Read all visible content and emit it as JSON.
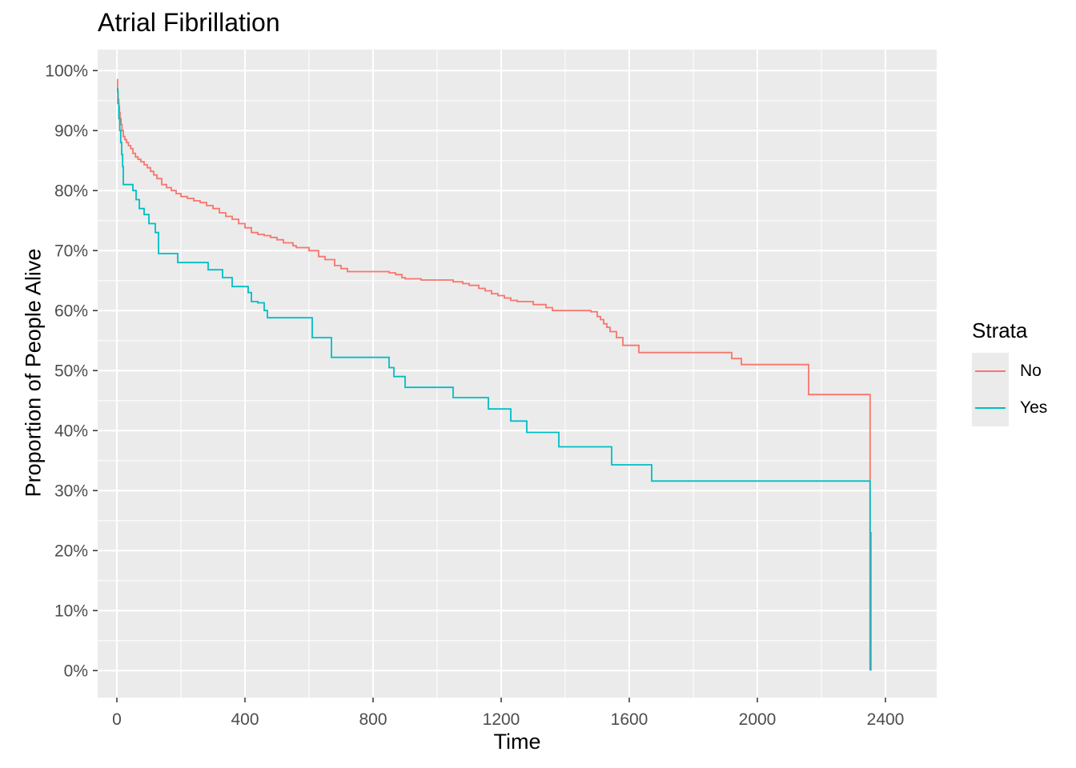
{
  "chart_data": {
    "type": "line",
    "step": true,
    "title": "Atrial Fibrillation",
    "xlabel": "Time",
    "ylabel": "Proportion of People Alive",
    "xlim": [
      -60,
      2560
    ],
    "ylim": [
      -0.045,
      1.035
    ],
    "x_ticks": [
      0,
      400,
      800,
      1200,
      1600,
      2000,
      2400
    ],
    "x_tick_labels": [
      "0",
      "400",
      "800",
      "1200",
      "1600",
      "2000",
      "2400"
    ],
    "y_ticks": [
      0,
      0.1,
      0.2,
      0.3,
      0.4,
      0.5,
      0.6,
      0.7,
      0.8,
      0.9,
      1.0
    ],
    "y_tick_labels": [
      "0%",
      "10%",
      "20%",
      "30%",
      "40%",
      "50%",
      "60%",
      "70%",
      "80%",
      "90%",
      "100%"
    ],
    "grid": true,
    "legend": {
      "title": "Strata",
      "position": "right"
    },
    "series": [
      {
        "name": "No",
        "color": "#F8766D",
        "x": [
          0,
          2,
          4,
          6,
          8,
          10,
          13,
          16,
          20,
          25,
          30,
          36,
          43,
          50,
          58,
          66,
          75,
          85,
          95,
          105,
          115,
          125,
          140,
          155,
          170,
          185,
          200,
          220,
          240,
          260,
          280,
          300,
          320,
          340,
          360,
          380,
          400,
          420,
          440,
          460,
          480,
          500,
          520,
          550,
          560,
          600,
          630,
          650,
          680,
          700,
          720,
          760,
          800,
          850,
          870,
          890,
          900,
          950,
          1000,
          1050,
          1080,
          1100,
          1130,
          1150,
          1170,
          1190,
          1210,
          1230,
          1250,
          1300,
          1340,
          1360,
          1400,
          1480,
          1500,
          1510,
          1520,
          1530,
          1540,
          1560,
          1580,
          1630,
          1700,
          1800,
          1920,
          1950,
          2000,
          2100,
          2160,
          2300,
          2350,
          2352,
          2355
        ],
        "values": [
          0.985,
          0.965,
          0.952,
          0.94,
          0.93,
          0.92,
          0.91,
          0.9,
          0.89,
          0.885,
          0.88,
          0.875,
          0.87,
          0.862,
          0.856,
          0.852,
          0.848,
          0.843,
          0.838,
          0.832,
          0.826,
          0.82,
          0.81,
          0.805,
          0.8,
          0.795,
          0.79,
          0.787,
          0.783,
          0.78,
          0.775,
          0.77,
          0.763,
          0.757,
          0.752,
          0.745,
          0.738,
          0.73,
          0.727,
          0.725,
          0.722,
          0.718,
          0.713,
          0.708,
          0.705,
          0.7,
          0.69,
          0.685,
          0.675,
          0.67,
          0.665,
          0.665,
          0.665,
          0.663,
          0.66,
          0.655,
          0.653,
          0.651,
          0.651,
          0.648,
          0.645,
          0.642,
          0.637,
          0.633,
          0.628,
          0.625,
          0.621,
          0.617,
          0.615,
          0.61,
          0.605,
          0.6,
          0.6,
          0.598,
          0.59,
          0.585,
          0.578,
          0.572,
          0.565,
          0.555,
          0.542,
          0.53,
          0.53,
          0.53,
          0.52,
          0.51,
          0.51,
          0.51,
          0.46,
          0.46,
          0.46,
          0.23,
          0.0
        ]
      },
      {
        "name": "Yes",
        "color": "#00BFC4",
        "x": [
          0,
          3,
          6,
          9,
          12,
          15,
          18,
          20,
          50,
          60,
          70,
          85,
          100,
          120,
          130,
          190,
          285,
          330,
          360,
          410,
          420,
          440,
          460,
          470,
          600,
          610,
          670,
          850,
          865,
          900,
          1050,
          1160,
          1230,
          1280,
          1380,
          1545,
          1670,
          2350,
          2352
        ],
        "values": [
          0.97,
          0.945,
          0.92,
          0.9,
          0.88,
          0.86,
          0.84,
          0.81,
          0.8,
          0.785,
          0.77,
          0.76,
          0.745,
          0.73,
          0.695,
          0.68,
          0.668,
          0.655,
          0.64,
          0.63,
          0.615,
          0.613,
          0.6,
          0.588,
          0.588,
          0.555,
          0.522,
          0.505,
          0.49,
          0.472,
          0.455,
          0.436,
          0.416,
          0.397,
          0.373,
          0.343,
          0.316,
          0.316,
          0.0
        ]
      }
    ]
  }
}
